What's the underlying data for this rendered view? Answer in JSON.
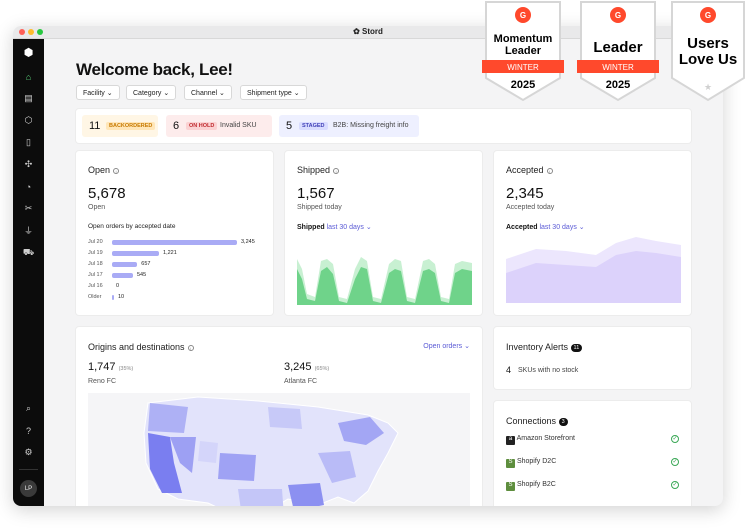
{
  "app": {
    "title": "Stord"
  },
  "header": {
    "welcome": "Welcome back, Lee!"
  },
  "filters": [
    "Facility",
    "Category",
    "Channel",
    "Shipment type"
  ],
  "alerts": [
    {
      "count": "11",
      "badge": "BACKORDERED",
      "text": "",
      "color": "#f5a623",
      "bg": "#fff6e5"
    },
    {
      "count": "6",
      "badge": "ON HOLD",
      "text": "Invalid SKU",
      "color": "#e5484d",
      "bg": "#fdecec"
    },
    {
      "count": "5",
      "badge": "STAGED",
      "text": "B2B: Missing freight info",
      "color": "#5b5bd6",
      "bg": "#eef0ff"
    }
  ],
  "open": {
    "title": "Open",
    "value": "5,678",
    "sub": "Open",
    "chart_title": "Open orders by accepted date",
    "chart_data": {
      "type": "bar",
      "categories": [
        "Jul 20",
        "Jul 19",
        "Jul 18",
        "Jul 17",
        "Jul 16",
        "Older"
      ],
      "values": [
        3245,
        1221,
        657,
        545,
        0,
        10
      ],
      "labels": [
        "3,245",
        "1,221",
        "657",
        "545",
        "0",
        "10"
      ]
    }
  },
  "shipped": {
    "title": "Shipped",
    "value": "1,567",
    "sub": "Shipped today",
    "range_label": "Shipped",
    "range": "last 30 days"
  },
  "accepted": {
    "title": "Accepted",
    "value": "2,345",
    "sub": "Accepted today",
    "range_label": "Accepted",
    "range": "last 30 days"
  },
  "origins": {
    "title": "Origins and destinations",
    "dropdown": "Open orders",
    "left": {
      "value": "1,747",
      "pct": "(35%)",
      "name": "Reno FC"
    },
    "right": {
      "value": "3,245",
      "pct": "(65%)",
      "name": "Atlanta FC"
    }
  },
  "inventory": {
    "title": "Inventory Alerts",
    "badge": "11",
    "count": "4",
    "text": "SKUs with no stock"
  },
  "connections": {
    "title": "Connections",
    "badge": "3",
    "items": [
      "Amazon Storefront",
      "Shopify D2C",
      "Shopify B2C"
    ]
  },
  "awards": [
    {
      "line1": "Momentum",
      "line2": "Leader",
      "season": "WINTER",
      "year": "2025"
    },
    {
      "line1": "Leader",
      "line2": "",
      "season": "WINTER",
      "year": "2025"
    },
    {
      "line1": "Users",
      "line2": "Love Us",
      "season": "",
      "year": ""
    }
  ],
  "user": {
    "initials": "LP"
  },
  "colors": {
    "accent": "#5b5bd6",
    "green": "#5ad17a",
    "purple": "#d9d0fb"
  }
}
